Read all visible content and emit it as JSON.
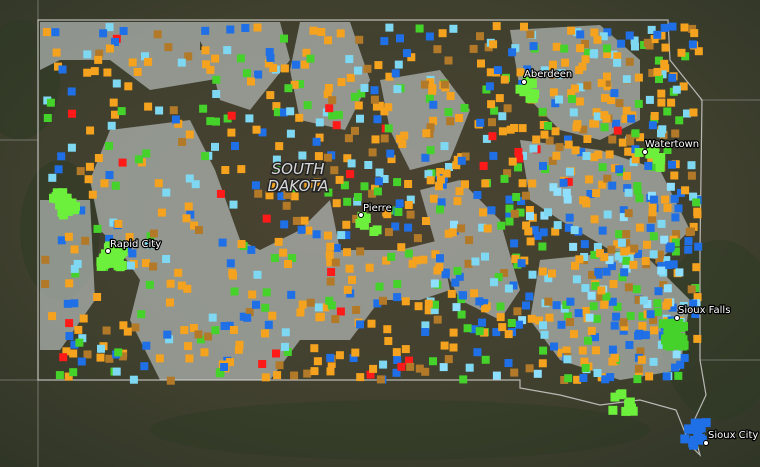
{
  "map": {
    "state_label": [
      "SOUTH",
      "DAKOTA"
    ],
    "cities": [
      "Aberdeen",
      "Watertown",
      "Pierre",
      "Rapid City",
      "Sioux Falls",
      "Sioux City"
    ]
  }
}
